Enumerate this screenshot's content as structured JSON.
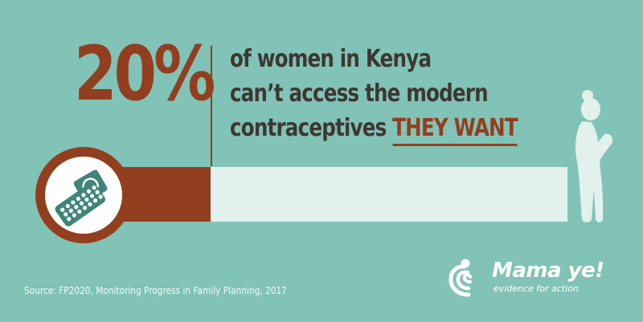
{
  "stat": {
    "percent": "20%",
    "value": 20,
    "line1": "of women in Kenya",
    "line2": "can’t access the modern",
    "line3_prefix": "contraceptives ",
    "line3_highlight": "THEY WANT"
  },
  "source": "Source: FP2020, Monitoring Progress in Family Planning, 2017",
  "logo": {
    "name": "Mama ye!",
    "tagline": "evidence for action"
  },
  "icons": {
    "left": "contraceptive-pill-pack-icon",
    "right": "standing-woman-icon"
  },
  "colors": {
    "background": "#81c3b6",
    "accent": "#923f1f",
    "text": "#3d3733",
    "track": "#e3f1ee"
  }
}
